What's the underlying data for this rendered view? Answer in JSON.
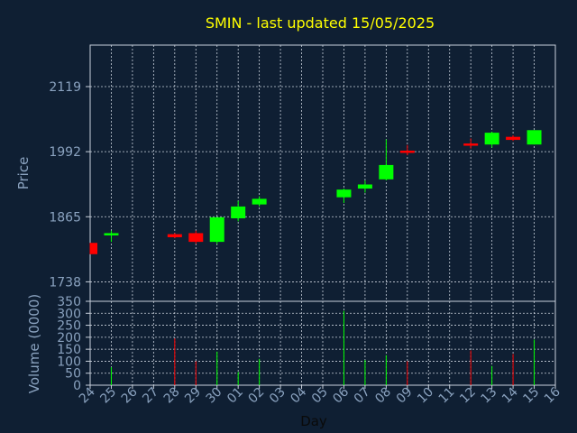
{
  "colors": {
    "background": "#0f1f33",
    "grid": "#c9d1dc",
    "axis_text": "#8aa2bf",
    "title": "#ffff00",
    "up": "#00ff00",
    "down": "#ff0000"
  },
  "chart_data": [
    {
      "type": "candlestick",
      "title": "SMIN - last updated 15/05/2025",
      "ylabel": "Price",
      "yticks": [
        1738,
        1865,
        1992,
        2119
      ],
      "ylim": [
        1700,
        2200
      ],
      "grid": true,
      "x": [
        "24",
        "25",
        "26",
        "27",
        "28",
        "29",
        "30",
        "01",
        "02",
        "03",
        "04",
        "05",
        "06",
        "07",
        "08",
        "09",
        "10",
        "11",
        "12",
        "13",
        "14",
        "15",
        "16"
      ],
      "candles": [
        {
          "day": "24",
          "open": 1814,
          "close": 1792,
          "high": 1814,
          "low": 1792
        },
        {
          "day": "25",
          "open": 1829,
          "close": 1833,
          "high": 1838,
          "low": 1816
        },
        {
          "day": "28",
          "open": 1831,
          "close": 1825,
          "high": 1833,
          "low": 1823
        },
        {
          "day": "29",
          "open": 1833,
          "close": 1816,
          "high": 1838,
          "low": 1812
        },
        {
          "day": "30",
          "open": 1816,
          "close": 1864,
          "high": 1864,
          "low": 1812
        },
        {
          "day": "01",
          "open": 1862,
          "close": 1885,
          "high": 1896,
          "low": 1856
        },
        {
          "day": "02",
          "open": 1889,
          "close": 1900,
          "high": 1905,
          "low": 1885
        },
        {
          "day": "06",
          "open": 1903,
          "close": 1918,
          "high": 1920,
          "low": 1892
        },
        {
          "day": "07",
          "open": 1920,
          "close": 1928,
          "high": 1936,
          "low": 1912
        },
        {
          "day": "08",
          "open": 1938,
          "close": 1966,
          "high": 2016,
          "low": 1936
        },
        {
          "day": "09",
          "open": 1994,
          "close": 1993,
          "high": 2005,
          "low": 1985
        },
        {
          "day": "12",
          "open": 2008,
          "close": 2004,
          "high": 2018,
          "low": 1998
        },
        {
          "day": "13",
          "open": 2006,
          "close": 2029,
          "high": 2031,
          "low": 2000
        },
        {
          "day": "14",
          "open": 2021,
          "close": 2015,
          "high": 2024,
          "low": 2013
        },
        {
          "day": "15",
          "open": 2006,
          "close": 2034,
          "high": 2034,
          "low": 2006
        }
      ]
    },
    {
      "type": "bar",
      "ylabel": "Volume (0000)",
      "xlabel": "Day",
      "yticks": [
        0,
        50,
        100,
        150,
        200,
        250,
        300,
        350
      ],
      "ylim": [
        0,
        350
      ],
      "grid": true,
      "x": [
        "24",
        "25",
        "26",
        "27",
        "28",
        "29",
        "30",
        "01",
        "02",
        "03",
        "04",
        "05",
        "06",
        "07",
        "08",
        "09",
        "10",
        "11",
        "12",
        "13",
        "14",
        "15",
        "16"
      ],
      "bars": [
        {
          "day": "24",
          "value": 0,
          "dir": "up"
        },
        {
          "day": "25",
          "value": 75,
          "dir": "up"
        },
        {
          "day": "28",
          "value": 195,
          "dir": "down"
        },
        {
          "day": "29",
          "value": 100,
          "dir": "down"
        },
        {
          "day": "30",
          "value": 140,
          "dir": "up"
        },
        {
          "day": "01",
          "value": 55,
          "dir": "up"
        },
        {
          "day": "02",
          "value": 110,
          "dir": "up"
        },
        {
          "day": "06",
          "value": 310,
          "dir": "up"
        },
        {
          "day": "07",
          "value": 105,
          "dir": "up"
        },
        {
          "day": "08",
          "value": 125,
          "dir": "up"
        },
        {
          "day": "09",
          "value": 100,
          "dir": "down"
        },
        {
          "day": "12",
          "value": 145,
          "dir": "down"
        },
        {
          "day": "13",
          "value": 80,
          "dir": "up"
        },
        {
          "day": "14",
          "value": 130,
          "dir": "down"
        },
        {
          "day": "15",
          "value": 190,
          "dir": "up"
        }
      ]
    }
  ]
}
